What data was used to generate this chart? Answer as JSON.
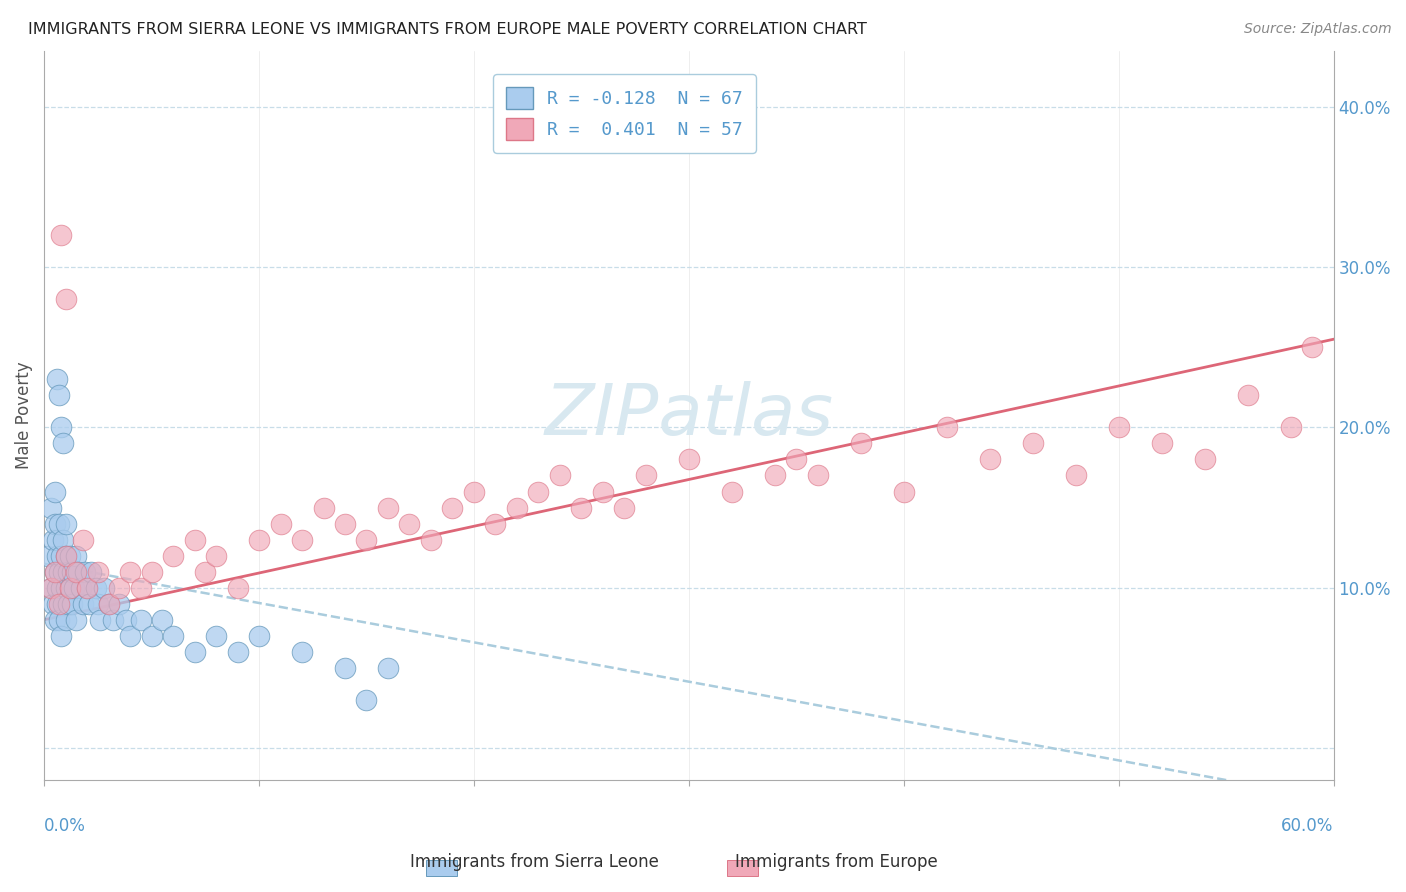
{
  "title": "IMMIGRANTS FROM SIERRA LEONE VS IMMIGRANTS FROM EUROPE MALE POVERTY CORRELATION CHART",
  "source": "Source: ZipAtlas.com",
  "ylabel": "Male Poverty",
  "xlim": [
    0.0,
    0.6
  ],
  "ylim": [
    -0.02,
    0.435
  ],
  "ytick_values": [
    0.0,
    0.1,
    0.2,
    0.3,
    0.4
  ],
  "ytick_labels": [
    "",
    "10.0%",
    "20.0%",
    "30.0%",
    "40.0%"
  ],
  "legend_label1": "R = -0.128  N = 67",
  "legend_label2": "R =  0.401  N = 57",
  "series1_label": "Immigrants from Sierra Leone",
  "series2_label": "Immigrants from Europe",
  "series1_face": "#aaccee",
  "series1_edge": "#6699bb",
  "series2_face": "#f0a8b8",
  "series2_edge": "#dd7788",
  "trendline1_color": "#aaccdd",
  "trendline2_color": "#dd6677",
  "watermark_color": "#d8e8f0",
  "grid_color": "#c8dde8",
  "bg_color": "#ffffff",
  "title_color": "#222222",
  "tick_color": "#5599cc",
  "ylabel_color": "#555555",
  "source_color": "#888888",
  "series1_x": [
    0.002,
    0.003,
    0.003,
    0.004,
    0.004,
    0.005,
    0.005,
    0.005,
    0.005,
    0.006,
    0.006,
    0.006,
    0.006,
    0.007,
    0.007,
    0.007,
    0.008,
    0.008,
    0.008,
    0.009,
    0.009,
    0.009,
    0.01,
    0.01,
    0.01,
    0.01,
    0.011,
    0.011,
    0.012,
    0.012,
    0.013,
    0.013,
    0.014,
    0.015,
    0.015,
    0.016,
    0.017,
    0.018,
    0.019,
    0.02,
    0.021,
    0.022,
    0.024,
    0.025,
    0.026,
    0.028,
    0.03,
    0.032,
    0.035,
    0.038,
    0.04,
    0.045,
    0.05,
    0.055,
    0.06,
    0.07,
    0.08,
    0.09,
    0.1,
    0.12,
    0.14,
    0.16,
    0.006,
    0.007,
    0.008,
    0.009,
    0.15
  ],
  "series1_y": [
    0.12,
    0.1,
    0.15,
    0.09,
    0.13,
    0.11,
    0.14,
    0.08,
    0.16,
    0.1,
    0.12,
    0.09,
    0.13,
    0.11,
    0.08,
    0.14,
    0.1,
    0.12,
    0.07,
    0.11,
    0.09,
    0.13,
    0.1,
    0.12,
    0.08,
    0.14,
    0.11,
    0.09,
    0.1,
    0.12,
    0.09,
    0.11,
    0.1,
    0.12,
    0.08,
    0.11,
    0.1,
    0.09,
    0.11,
    0.1,
    0.09,
    0.11,
    0.1,
    0.09,
    0.08,
    0.1,
    0.09,
    0.08,
    0.09,
    0.08,
    0.07,
    0.08,
    0.07,
    0.08,
    0.07,
    0.06,
    0.07,
    0.06,
    0.07,
    0.06,
    0.05,
    0.05,
    0.23,
    0.22,
    0.2,
    0.19,
    0.03
  ],
  "series2_x": [
    0.003,
    0.005,
    0.007,
    0.01,
    0.012,
    0.015,
    0.018,
    0.02,
    0.025,
    0.03,
    0.035,
    0.04,
    0.045,
    0.05,
    0.06,
    0.07,
    0.075,
    0.08,
    0.09,
    0.1,
    0.11,
    0.12,
    0.13,
    0.14,
    0.15,
    0.16,
    0.17,
    0.18,
    0.19,
    0.2,
    0.21,
    0.22,
    0.23,
    0.24,
    0.25,
    0.26,
    0.27,
    0.28,
    0.3,
    0.32,
    0.34,
    0.35,
    0.36,
    0.38,
    0.4,
    0.42,
    0.44,
    0.46,
    0.48,
    0.5,
    0.52,
    0.54,
    0.56,
    0.58,
    0.59,
    0.008,
    0.01
  ],
  "series2_y": [
    0.1,
    0.11,
    0.09,
    0.12,
    0.1,
    0.11,
    0.13,
    0.1,
    0.11,
    0.09,
    0.1,
    0.11,
    0.1,
    0.11,
    0.12,
    0.13,
    0.11,
    0.12,
    0.1,
    0.13,
    0.14,
    0.13,
    0.15,
    0.14,
    0.13,
    0.15,
    0.14,
    0.13,
    0.15,
    0.16,
    0.14,
    0.15,
    0.16,
    0.17,
    0.15,
    0.16,
    0.15,
    0.17,
    0.18,
    0.16,
    0.17,
    0.18,
    0.17,
    0.19,
    0.16,
    0.2,
    0.18,
    0.19,
    0.17,
    0.2,
    0.19,
    0.18,
    0.22,
    0.2,
    0.25,
    0.32,
    0.28
  ],
  "trendline1_x0": 0.0,
  "trendline1_x1": 0.55,
  "trendline1_y0": 0.115,
  "trendline1_y1": -0.02,
  "trendline2_x0": 0.0,
  "trendline2_x1": 0.6,
  "trendline2_y0": 0.08,
  "trendline2_y1": 0.255
}
